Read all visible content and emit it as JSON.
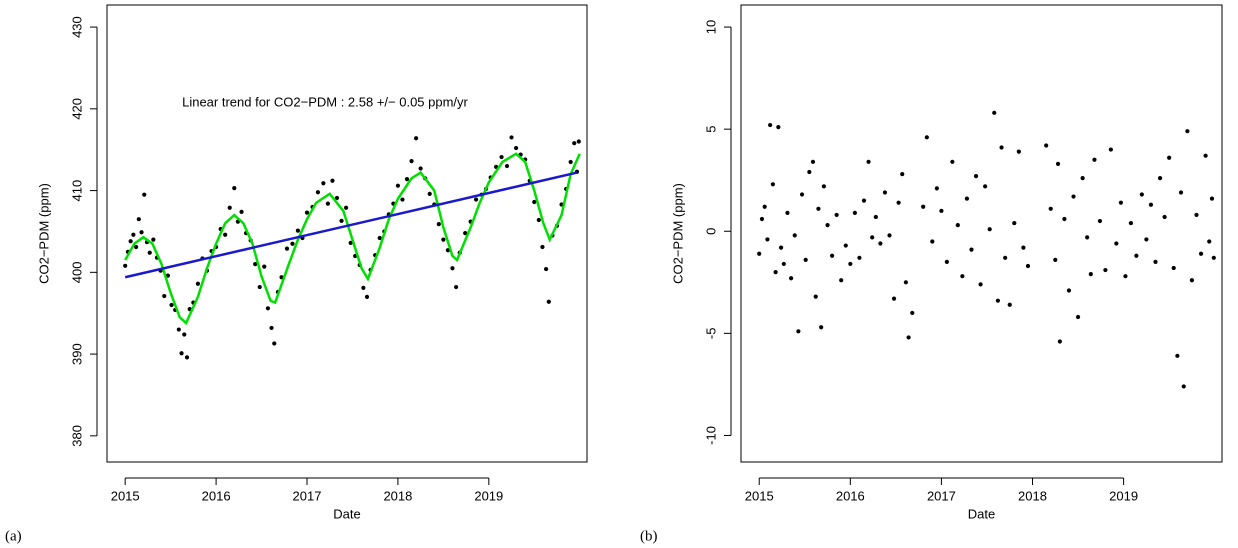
{
  "chart_data": [
    {
      "type": "scatter",
      "panel_label": "(a)",
      "x_label": "Date",
      "y_label": "CO2−PDM (ppm)",
      "annotation": "Linear trend for  CO2−PDM :  2.58 +/− 0.05 ppm/yr",
      "xlim": [
        2014.8,
        2020.08
      ],
      "ylim": [
        376.8,
        432.7
      ],
      "xticks": [
        2015,
        2016,
        2017,
        2018,
        2019
      ],
      "yticks": [
        380,
        390,
        400,
        410,
        420,
        430
      ],
      "series": [
        {
          "kind": "points",
          "color": "#000000",
          "x": [
            2015.0,
            2015.03,
            2015.06,
            2015.09,
            2015.12,
            2015.15,
            2015.18,
            2015.21,
            2015.24,
            2015.27,
            2015.31,
            2015.35,
            2015.39,
            2015.43,
            2015.47,
            2015.51,
            2015.55,
            2015.59,
            2015.62,
            2015.65,
            2015.68,
            2015.71,
            2015.75,
            2015.8,
            2015.85,
            2015.9,
            2015.95,
            2016.0,
            2016.05,
            2016.1,
            2016.15,
            2016.2,
            2016.24,
            2016.28,
            2016.33,
            2016.38,
            2016.43,
            2016.48,
            2016.53,
            2016.57,
            2016.61,
            2016.64,
            2016.68,
            2016.72,
            2016.78,
            2016.84,
            2016.9,
            2016.95,
            2017.0,
            2017.06,
            2017.12,
            2017.18,
            2017.23,
            2017.28,
            2017.33,
            2017.38,
            2017.43,
            2017.48,
            2017.53,
            2017.58,
            2017.62,
            2017.66,
            2017.7,
            2017.75,
            2017.8,
            2017.85,
            2017.9,
            2017.95,
            2018.0,
            2018.05,
            2018.1,
            2018.15,
            2018.2,
            2018.25,
            2018.3,
            2018.35,
            2018.4,
            2018.45,
            2018.5,
            2018.55,
            2018.6,
            2018.64,
            2018.68,
            2018.74,
            2018.8,
            2018.86,
            2018.92,
            2018.97,
            2019.02,
            2019.08,
            2019.14,
            2019.2,
            2019.25,
            2019.3,
            2019.35,
            2019.4,
            2019.45,
            2019.5,
            2019.55,
            2019.59,
            2019.63,
            2019.66,
            2019.7,
            2019.75,
            2019.8,
            2019.85,
            2019.9,
            2019.94,
            2019.97,
            2019.99
          ],
          "values": [
            400.8,
            402.5,
            403.8,
            404.6,
            403.1,
            406.5,
            404.9,
            409.5,
            403.7,
            402.4,
            404.0,
            401.8,
            400.2,
            397.1,
            399.6,
            396.0,
            395.4,
            393.0,
            390.1,
            392.4,
            389.6,
            395.5,
            396.3,
            398.6,
            401.7,
            400.2,
            402.6,
            403.1,
            405.3,
            404.6,
            407.9,
            410.3,
            406.2,
            407.4,
            404.8,
            403.9,
            401.0,
            398.2,
            400.7,
            395.6,
            393.2,
            391.3,
            397.6,
            399.4,
            402.9,
            403.5,
            405.1,
            404.2,
            407.3,
            408.0,
            409.8,
            410.9,
            408.4,
            411.2,
            409.1,
            406.3,
            407.9,
            403.6,
            402.0,
            400.9,
            398.1,
            397.0,
            400.3,
            402.1,
            404.2,
            405.0,
            407.1,
            408.4,
            410.6,
            408.9,
            411.4,
            413.6,
            416.4,
            412.7,
            411.5,
            409.6,
            408.3,
            405.9,
            404.0,
            402.7,
            400.5,
            398.2,
            402.4,
            404.8,
            406.2,
            408.9,
            409.5,
            410.2,
            411.6,
            412.9,
            414.1,
            413.0,
            416.5,
            415.2,
            414.4,
            413.8,
            411.2,
            408.6,
            406.4,
            403.1,
            400.4,
            396.4,
            404.5,
            405.7,
            408.3,
            410.2,
            413.5,
            415.8,
            412.3,
            416.0
          ]
        },
        {
          "kind": "line",
          "color": "#00e000",
          "x": [
            2015.0,
            2015.1,
            2015.2,
            2015.3,
            2015.4,
            2015.5,
            2015.6,
            2015.67,
            2015.8,
            2015.9,
            2016.0,
            2016.1,
            2016.2,
            2016.3,
            2016.4,
            2016.5,
            2016.6,
            2016.65,
            2016.8,
            2016.9,
            2017.0,
            2017.1,
            2017.25,
            2017.4,
            2017.5,
            2017.6,
            2017.67,
            2017.8,
            2017.9,
            2018.0,
            2018.15,
            2018.25,
            2018.4,
            2018.5,
            2018.6,
            2018.65,
            2018.8,
            2018.9,
            2019.0,
            2019.15,
            2019.3,
            2019.4,
            2019.5,
            2019.6,
            2019.67,
            2019.8,
            2019.9,
            2020.0
          ],
          "values": [
            401.5,
            403.5,
            404.3,
            403.5,
            401,
            397.5,
            394.5,
            393.8,
            397,
            400.5,
            403.5,
            406,
            407,
            406,
            403.5,
            399.5,
            396.5,
            396.3,
            401,
            404,
            406.5,
            408.5,
            409.6,
            407.5,
            404,
            400.5,
            399.2,
            403,
            406.5,
            409,
            411.5,
            412.2,
            410,
            405.5,
            402,
            401.5,
            405.5,
            408.5,
            411,
            413.5,
            414.5,
            413.5,
            410,
            406,
            404,
            407,
            412,
            414.5
          ]
        },
        {
          "kind": "line",
          "color": "#1a1acc",
          "x": [
            2015.0,
            2019.97
          ],
          "values": [
            399.4,
            412.2
          ]
        }
      ]
    },
    {
      "type": "scatter",
      "panel_label": "(b)",
      "x_label": "Date",
      "y_label": "CO2−PDM (ppm)",
      "xlim": [
        2014.8,
        2020.08
      ],
      "ylim": [
        -11.3,
        11.08
      ],
      "xticks": [
        2015,
        2016,
        2017,
        2018,
        2019
      ],
      "yticks": [
        -10,
        -5,
        0,
        5,
        10
      ],
      "series": [
        {
          "kind": "points",
          "color": "#000000",
          "x": [
            2015.0,
            2015.03,
            2015.06,
            2015.09,
            2015.12,
            2015.15,
            2015.18,
            2015.21,
            2015.24,
            2015.27,
            2015.31,
            2015.35,
            2015.39,
            2015.43,
            2015.47,
            2015.51,
            2015.55,
            2015.59,
            2015.62,
            2015.65,
            2015.68,
            2015.71,
            2015.75,
            2015.8,
            2015.85,
            2015.9,
            2015.95,
            2016.0,
            2016.05,
            2016.1,
            2016.15,
            2016.2,
            2016.24,
            2016.28,
            2016.33,
            2016.38,
            2016.43,
            2016.48,
            2016.53,
            2016.57,
            2016.61,
            2016.64,
            2016.68,
            2016.8,
            2016.84,
            2016.9,
            2016.95,
            2017.0,
            2017.06,
            2017.12,
            2017.18,
            2017.23,
            2017.28,
            2017.33,
            2017.38,
            2017.43,
            2017.48,
            2017.53,
            2017.58,
            2017.62,
            2017.66,
            2017.7,
            2017.75,
            2017.8,
            2017.85,
            2017.9,
            2017.95,
            2018.15,
            2018.2,
            2018.25,
            2018.28,
            2018.3,
            2018.35,
            2018.4,
            2018.45,
            2018.5,
            2018.55,
            2018.6,
            2018.64,
            2018.68,
            2018.74,
            2018.8,
            2018.86,
            2018.92,
            2018.97,
            2019.02,
            2019.08,
            2019.14,
            2019.2,
            2019.25,
            2019.3,
            2019.35,
            2019.4,
            2019.45,
            2019.5,
            2019.55,
            2019.59,
            2019.63,
            2019.66,
            2019.7,
            2019.75,
            2019.8,
            2019.85,
            2019.9,
            2019.94,
            2019.97,
            2019.99
          ],
          "values": [
            -1.1,
            0.6,
            1.2,
            -0.4,
            5.2,
            2.3,
            -2.0,
            5.1,
            -0.8,
            -1.6,
            0.9,
            -2.3,
            -0.2,
            -4.9,
            1.8,
            -1.4,
            2.9,
            3.4,
            -3.2,
            1.1,
            -4.7,
            2.2,
            0.3,
            -1.2,
            0.8,
            -2.4,
            -0.7,
            -1.6,
            0.9,
            -1.3,
            1.5,
            3.4,
            -0.3,
            0.7,
            -0.6,
            1.9,
            -0.2,
            -3.3,
            1.4,
            2.8,
            -2.5,
            -5.2,
            -4.0,
            1.2,
            4.6,
            -0.5,
            2.1,
            1.0,
            -1.5,
            3.4,
            0.3,
            -2.2,
            1.6,
            -0.9,
            2.7,
            -2.6,
            2.2,
            0.1,
            5.8,
            -3.4,
            4.1,
            -1.3,
            -3.6,
            0.4,
            3.9,
            -0.8,
            -1.7,
            4.2,
            1.1,
            -1.4,
            3.3,
            -5.4,
            0.6,
            -2.9,
            1.7,
            -4.2,
            2.6,
            -0.3,
            -2.1,
            3.5,
            0.5,
            -1.9,
            4.0,
            -0.6,
            1.4,
            -2.2,
            0.4,
            -1.2,
            1.8,
            -0.4,
            1.3,
            -1.5,
            2.6,
            0.7,
            3.6,
            -1.8,
            -6.1,
            1.9,
            -7.6,
            4.9,
            -2.4,
            0.8,
            -1.1,
            3.7,
            -0.5,
            1.6,
            -1.3
          ]
        }
      ]
    }
  ]
}
